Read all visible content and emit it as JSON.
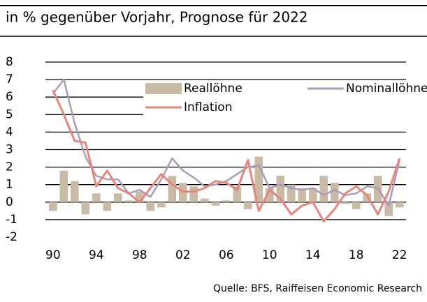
{
  "chart_data": {
    "type": "bar-line",
    "title": "in % gegenüber Vorjahr, Prognose für 2022",
    "source": "Quelle: BFS, Raiffeisen Economic Research",
    "x": [
      1990,
      1991,
      1992,
      1993,
      1994,
      1995,
      1996,
      1997,
      1998,
      1999,
      2000,
      2001,
      2002,
      2003,
      2004,
      2005,
      2006,
      2007,
      2008,
      2009,
      2010,
      2011,
      2012,
      2013,
      2014,
      2015,
      2016,
      2017,
      2018,
      2019,
      2020,
      2021,
      2022
    ],
    "series": [
      {
        "name": "Reallöhne",
        "kind": "bar",
        "color": "#c9baa6",
        "values": [
          -0.5,
          1.8,
          1.2,
          -0.7,
          0.5,
          -0.5,
          0.5,
          0.1,
          0.6,
          -0.5,
          -0.3,
          1.5,
          1.1,
          0.9,
          0.2,
          -0.2,
          0.1,
          0.9,
          -0.4,
          2.6,
          0.8,
          1.5,
          1.0,
          0.8,
          0.8,
          1.5,
          1.1,
          -0.1,
          -0.4,
          0.5,
          1.5,
          -0.8,
          -0.3
        ]
      },
      {
        "name": "Nominallöhne",
        "kind": "line",
        "color": "#a99bb9",
        "values": [
          6.2,
          7.0,
          4.5,
          2.6,
          1.5,
          1.3,
          1.3,
          0.5,
          0.7,
          0.3,
          1.3,
          2.5,
          1.8,
          1.4,
          0.9,
          1.0,
          1.2,
          1.6,
          2.0,
          2.1,
          0.8,
          1.0,
          0.8,
          0.7,
          0.8,
          0.4,
          0.7,
          0.4,
          0.5,
          0.9,
          0.8,
          -0.2,
          2.4
        ]
      },
      {
        "name": "Inflation",
        "kind": "line",
        "color": "#e8847b",
        "values": [
          6.4,
          5.0,
          3.5,
          3.4,
          0.9,
          1.8,
          0.8,
          0.5,
          0.0,
          0.8,
          1.6,
          1.0,
          0.6,
          0.6,
          0.8,
          1.2,
          1.1,
          0.7,
          2.4,
          -0.5,
          0.7,
          0.2,
          -0.7,
          -0.2,
          0.0,
          -1.1,
          -0.4,
          0.5,
          0.9,
          0.4,
          -0.7,
          0.6,
          2.5
        ]
      }
    ],
    "xlim": [
      1989.3,
      2022.6
    ],
    "xticks": [
      {
        "value": 1990,
        "label": "90"
      },
      {
        "value": 1994,
        "label": "94"
      },
      {
        "value": 1998,
        "label": "98"
      },
      {
        "value": 2002,
        "label": "02"
      },
      {
        "value": 2006,
        "label": "06"
      },
      {
        "value": 2010,
        "label": "10"
      },
      {
        "value": 2014,
        "label": "14"
      },
      {
        "value": 2018,
        "label": "18"
      },
      {
        "value": 2022,
        "label": "22"
      }
    ],
    "ylim": [
      -2,
      8
    ],
    "yticks": [
      8,
      7,
      6,
      5,
      4,
      3,
      2,
      1,
      0,
      -1,
      -2
    ],
    "grid": true
  }
}
